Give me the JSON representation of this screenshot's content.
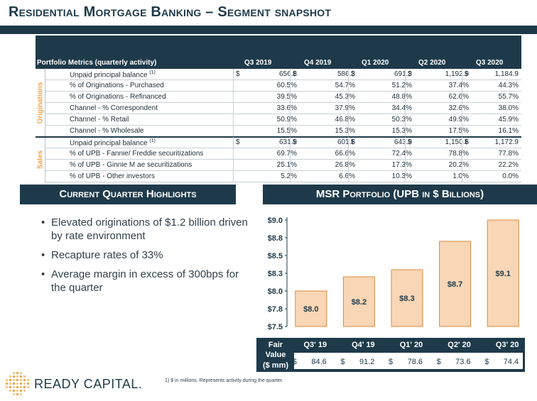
{
  "title": "Residential Mortgage Banking – Segment snapshot",
  "table": {
    "header": "Portfolio Metrics (quarterly activity)",
    "periods": [
      "Q3 2019",
      "Q4 2019",
      "Q1 2020",
      "Q2 2020",
      "Q3 2020"
    ],
    "groups": [
      {
        "label": "Originations",
        "rows": [
          {
            "metric": "Unpaid principal balance",
            "sup": "(1)",
            "currency": "$",
            "values": [
              "656.8",
              "586.3",
              "691.3",
              "1,192.9",
              "1,184.9"
            ]
          },
          {
            "metric": "% of Originations - Purchased",
            "values": [
              "60.5%",
              "54.7%",
              "51.2%",
              "37.4%",
              "44.3%"
            ]
          },
          {
            "metric": "% of Originations - Refinanced",
            "values": [
              "39.5%",
              "45.3%",
              "48.8%",
              "62.6%",
              "55.7%"
            ]
          },
          {
            "metric": "Channel - % Correspondent",
            "values": [
              "33.6%",
              "37.9%",
              "34.4%",
              "32.6%",
              "38.0%"
            ]
          },
          {
            "metric": "Channel - % Retail",
            "values": [
              "50.9%",
              "46.8%",
              "50.3%",
              "49.9%",
              "45.9%"
            ]
          },
          {
            "metric": "Channel - % Wholesale",
            "values": [
              "15.5%",
              "15.3%",
              "15.3%",
              "17.5%",
              "16.1%"
            ]
          }
        ]
      },
      {
        "label": "Sales",
        "rows": [
          {
            "metric": "Unpaid principal balance",
            "sup": "(1)",
            "currency": "$",
            "values": [
              "631.9",
              "601.6",
              "643.9",
              "1,150.6",
              "1,172.9"
            ]
          },
          {
            "metric": "% of UPB - Fannie/ Freddie securitizations",
            "values": [
              "69.7%",
              "66.6%",
              "72.4%",
              "78.8%",
              "77.8%"
            ]
          },
          {
            "metric": "% of UPB - Ginnie M ae securitizations",
            "values": [
              "25.1%",
              "26.8%",
              "17.3%",
              "20.2%",
              "22.2%"
            ]
          },
          {
            "metric": "% of UPB - Other investors",
            "values": [
              "5.2%",
              "6.6%",
              "10.3%",
              "1.0%",
              "0.0%"
            ]
          }
        ]
      }
    ]
  },
  "highlights": {
    "heading": "Current Quarter Highlights",
    "items": [
      "Elevated originations of $1.2 billion driven by rate environment",
      "Recapture rates of 33%",
      "Average margin in excess of 300bps for the quarter"
    ]
  },
  "chart_data": {
    "type": "bar",
    "title": "MSR Portfolio (UPB in $ Billions)",
    "categories": [
      "Q3' 19",
      "Q4' 19",
      "Q1' 20",
      "Q2' 20",
      "Q3' 20"
    ],
    "values": [
      8.0,
      8.2,
      8.3,
      8.7,
      9.1
    ],
    "data_labels": [
      "$8.0",
      "$8.2",
      "$8.3",
      "$8.7",
      "$9.1"
    ],
    "y_ticks": [
      "$9.0",
      "$8.8",
      "$8.5",
      "$8.3",
      "$8.0",
      "$7.8",
      "$7.5"
    ],
    "y_tick_values": [
      9.0,
      8.75,
      8.5,
      8.25,
      8.0,
      7.75,
      7.5
    ],
    "ylim": [
      7.5,
      9.0
    ],
    "bar_color": "#f9d6b5",
    "bar_border": "#e08a3c",
    "fair_value": {
      "label_line1": "Fair",
      "label_line2": "Value",
      "label_line3": "($ mm)",
      "currency": "$",
      "values": [
        "84.6",
        "91.2",
        "78.6",
        "73.6",
        "74.4"
      ]
    }
  },
  "footnote": "1)   $ in millions. Represents activity during the quarter.",
  "logo": {
    "text": "READY CAPITAL."
  },
  "colors": {
    "navy": "#1e3a4a",
    "orange": "#f0a548"
  }
}
